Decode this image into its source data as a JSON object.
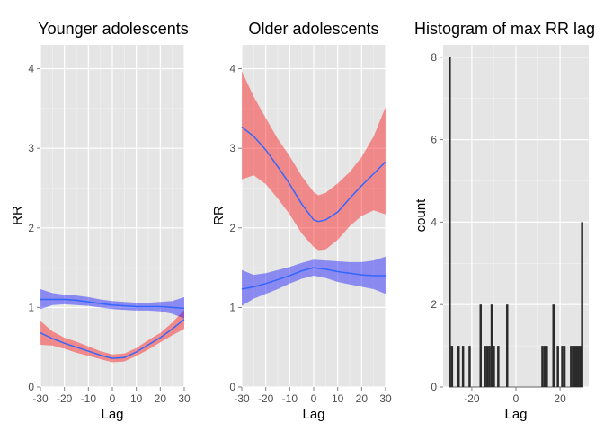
{
  "chart_data": [
    {
      "type": "line",
      "title": "Younger adolescents",
      "xlabel": "Lag",
      "ylabel": "RR",
      "xlim": [
        -30,
        30
      ],
      "ylim": [
        0,
        4.3
      ],
      "xticks": [
        -30,
        -20,
        -10,
        0,
        10,
        20,
        30
      ],
      "xtick_labels": [
        "-30",
        "-20",
        "-10",
        "0",
        "10",
        "20",
        "30"
      ],
      "yticks": [
        0,
        1,
        2,
        3,
        4
      ],
      "ytick_labels": [
        "0",
        "1",
        "2",
        "3",
        "4"
      ],
      "grid": true,
      "series": [
        {
          "band_color": "#ff0000",
          "line_color": "#3366ff",
          "x": [
            -30,
            -25,
            -20,
            -15,
            -10,
            -5,
            0,
            5,
            10,
            15,
            20,
            25,
            30
          ],
          "y": [
            0.68,
            0.61,
            0.55,
            0.5,
            0.45,
            0.4,
            0.36,
            0.37,
            0.44,
            0.53,
            0.62,
            0.73,
            0.85
          ],
          "lower": [
            0.53,
            0.52,
            0.48,
            0.43,
            0.39,
            0.35,
            0.31,
            0.32,
            0.39,
            0.47,
            0.56,
            0.65,
            0.73
          ],
          "upper": [
            0.83,
            0.7,
            0.62,
            0.57,
            0.51,
            0.45,
            0.41,
            0.42,
            0.49,
            0.59,
            0.68,
            0.81,
            0.97
          ]
        },
        {
          "band_color": "#0000ff",
          "line_color": "#3366ff",
          "x": [
            -30,
            -25,
            -20,
            -15,
            -10,
            -5,
            0,
            5,
            10,
            15,
            20,
            25,
            30
          ],
          "y": [
            1.1,
            1.1,
            1.1,
            1.09,
            1.07,
            1.05,
            1.03,
            1.02,
            1.01,
            1.01,
            1.01,
            1.0,
            0.99
          ],
          "lower": [
            0.98,
            1.03,
            1.04,
            1.03,
            1.02,
            1.0,
            0.98,
            0.97,
            0.96,
            0.96,
            0.95,
            0.92,
            0.86
          ],
          "upper": [
            1.23,
            1.18,
            1.16,
            1.15,
            1.13,
            1.1,
            1.08,
            1.07,
            1.06,
            1.06,
            1.07,
            1.08,
            1.13
          ]
        }
      ]
    },
    {
      "type": "line",
      "title": "Older adolescents",
      "xlabel": "Lag",
      "ylabel": "RR",
      "xlim": [
        -30,
        30
      ],
      "ylim": [
        0,
        4.3
      ],
      "xticks": [
        -30,
        -20,
        -10,
        0,
        10,
        20,
        30
      ],
      "xtick_labels": [
        "-30",
        "-20",
        "-10",
        "0",
        "10",
        "20",
        "30"
      ],
      "yticks": [
        0,
        1,
        2,
        3,
        4
      ],
      "ytick_labels": [
        "0",
        "1",
        "2",
        "3",
        "4"
      ],
      "grid": true,
      "series": [
        {
          "band_color": "#ff0000",
          "line_color": "#3366ff",
          "x": [
            -30,
            -25,
            -20,
            -15,
            -10,
            -5,
            0,
            2,
            5,
            10,
            15,
            20,
            25,
            30
          ],
          "y": [
            3.27,
            3.15,
            2.98,
            2.77,
            2.55,
            2.3,
            2.1,
            2.08,
            2.1,
            2.2,
            2.37,
            2.53,
            2.68,
            2.83
          ],
          "lower": [
            2.61,
            2.66,
            2.55,
            2.37,
            2.17,
            1.93,
            1.76,
            1.72,
            1.73,
            1.85,
            2.02,
            2.15,
            2.22,
            2.17
          ],
          "upper": [
            3.97,
            3.65,
            3.38,
            3.12,
            2.9,
            2.65,
            2.45,
            2.41,
            2.44,
            2.56,
            2.7,
            2.89,
            3.15,
            3.52
          ]
        },
        {
          "band_color": "#0000ff",
          "line_color": "#3366ff",
          "x": [
            -30,
            -25,
            -20,
            -15,
            -10,
            -5,
            0,
            5,
            10,
            15,
            20,
            25,
            30
          ],
          "y": [
            1.23,
            1.26,
            1.3,
            1.35,
            1.4,
            1.46,
            1.5,
            1.48,
            1.45,
            1.43,
            1.41,
            1.4,
            1.4
          ],
          "lower": [
            1.02,
            1.11,
            1.17,
            1.23,
            1.3,
            1.36,
            1.4,
            1.37,
            1.32,
            1.29,
            1.26,
            1.23,
            1.17
          ],
          "upper": [
            1.47,
            1.41,
            1.43,
            1.47,
            1.51,
            1.56,
            1.6,
            1.59,
            1.58,
            1.57,
            1.57,
            1.59,
            1.64
          ]
        }
      ]
    },
    {
      "type": "bar",
      "title": "Histogram of max RR lag",
      "xlabel": "Lag",
      "ylabel": "count",
      "xlim": [
        -33,
        33
      ],
      "ylim": [
        0,
        8.3
      ],
      "xticks": [
        -20,
        0,
        20
      ],
      "xtick_labels": [
        "-20",
        "0",
        "20"
      ],
      "yticks": [
        0,
        2,
        4,
        6,
        8
      ],
      "ytick_labels": [
        "0",
        "2",
        "4",
        "6",
        "8"
      ],
      "grid": true,
      "bar_color": "#2b2b2b",
      "x": [
        -30,
        -29,
        -26,
        -24,
        -21,
        -16,
        -14,
        -13,
        -12,
        -11,
        -10,
        -8,
        -4,
        12,
        13,
        14,
        17,
        19,
        21,
        22,
        25,
        26,
        27,
        28,
        29,
        30
      ],
      "values": [
        8,
        1,
        1,
        1,
        1,
        2,
        1,
        1,
        1,
        2,
        1,
        1,
        2,
        1,
        1,
        1,
        2,
        1,
        1,
        1,
        1,
        1,
        1,
        1,
        1,
        4
      ]
    }
  ]
}
